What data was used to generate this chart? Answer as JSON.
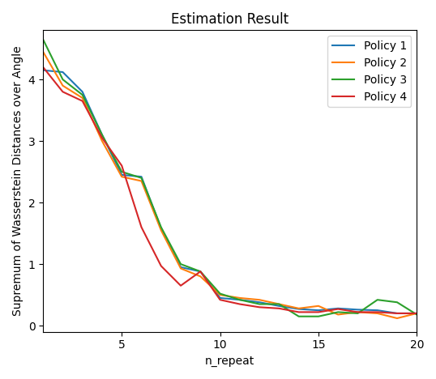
{
  "title": "Estimation Result",
  "xlabel": "n_repeat",
  "ylabel": "Supremum of Wasserstein Distances over Angle",
  "x": [
    1,
    2,
    3,
    4,
    5,
    6,
    7,
    8,
    9,
    10,
    11,
    12,
    13,
    14,
    15,
    16,
    17,
    18,
    19,
    20
  ],
  "policy1": [
    4.15,
    4.12,
    3.8,
    3.1,
    2.45,
    2.42,
    1.58,
    0.95,
    0.88,
    0.45,
    0.42,
    0.38,
    0.32,
    0.27,
    0.25,
    0.28,
    0.26,
    0.25,
    0.2,
    0.2
  ],
  "policy2": [
    4.45,
    3.9,
    3.7,
    3.0,
    2.42,
    2.35,
    1.55,
    0.93,
    0.8,
    0.5,
    0.45,
    0.42,
    0.35,
    0.28,
    0.32,
    0.18,
    0.22,
    0.2,
    0.12,
    0.2
  ],
  "policy3": [
    4.65,
    4.0,
    3.75,
    3.1,
    2.5,
    2.4,
    1.6,
    1.0,
    0.88,
    0.52,
    0.42,
    0.35,
    0.35,
    0.15,
    0.15,
    0.22,
    0.2,
    0.42,
    0.38,
    0.18
  ],
  "policy4": [
    4.2,
    3.8,
    3.65,
    3.05,
    2.6,
    1.6,
    0.97,
    0.65,
    0.88,
    0.42,
    0.35,
    0.3,
    0.28,
    0.22,
    0.22,
    0.27,
    0.22,
    0.22,
    0.2,
    0.2
  ],
  "colors": [
    "#1f77b4",
    "#ff7f0e",
    "#2ca02c",
    "#d62728"
  ],
  "labels": [
    "Policy 1",
    "Policy 2",
    "Policy 3",
    "Policy 4"
  ],
  "xlim": [
    1,
    20
  ],
  "ylim": [
    -0.1,
    4.8
  ],
  "figsize": [
    5.38,
    4.68
  ],
  "dpi": 100
}
